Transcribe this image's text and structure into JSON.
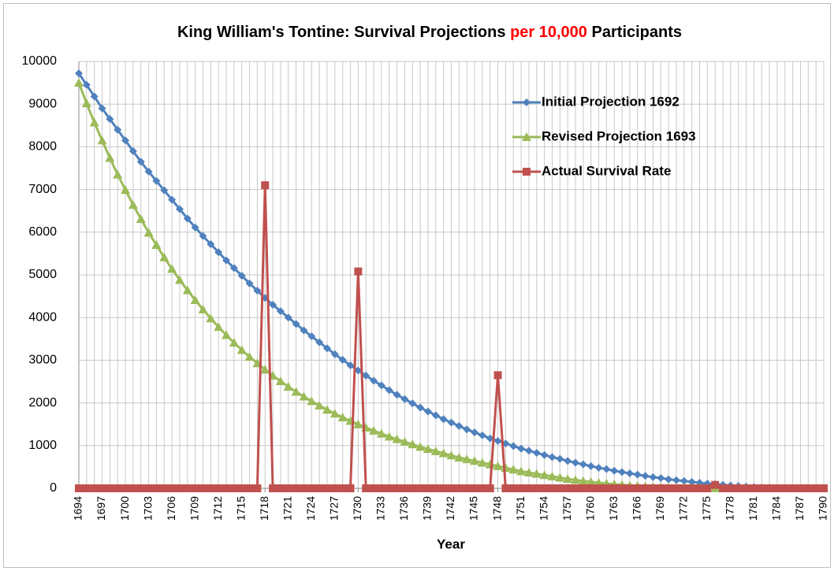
{
  "chart_data": {
    "type": "line",
    "title": [
      {
        "text": "King William's Tontine: Survival Projections",
        "color": "#000000"
      },
      {
        "text": "per 10,000",
        "color": "#ff0000"
      },
      {
        "text": "Participants",
        "color": "#000000"
      }
    ],
    "x_label": "Year",
    "x": [
      1694,
      1695,
      1696,
      1697,
      1698,
      1699,
      1700,
      1701,
      1702,
      1703,
      1704,
      1705,
      1706,
      1707,
      1708,
      1709,
      1710,
      1711,
      1712,
      1713,
      1714,
      1715,
      1716,
      1717,
      1718,
      1719,
      1720,
      1721,
      1722,
      1723,
      1724,
      1725,
      1726,
      1727,
      1728,
      1729,
      1730,
      1731,
      1732,
      1733,
      1734,
      1735,
      1736,
      1737,
      1738,
      1739,
      1740,
      1741,
      1742,
      1743,
      1744,
      1745,
      1746,
      1747,
      1748,
      1749,
      1750,
      1751,
      1752,
      1753,
      1754,
      1755,
      1756,
      1757,
      1758,
      1759,
      1760,
      1761,
      1762,
      1763,
      1764,
      1765,
      1766,
      1767,
      1768,
      1769,
      1770,
      1771,
      1772,
      1773,
      1774,
      1775,
      1776,
      1777,
      1778,
      1779,
      1780,
      1781,
      1782,
      1783,
      1784,
      1785,
      1786,
      1787,
      1788,
      1789,
      1790
    ],
    "xlim": [
      1694,
      1790
    ],
    "xticks": [
      1694,
      1697,
      1700,
      1703,
      1706,
      1709,
      1712,
      1715,
      1718,
      1721,
      1724,
      1727,
      1730,
      1733,
      1736,
      1739,
      1742,
      1745,
      1748,
      1751,
      1754,
      1757,
      1760,
      1763,
      1766,
      1769,
      1772,
      1775,
      1778,
      1781,
      1784,
      1787,
      1790
    ],
    "ylim": [
      0,
      10000
    ],
    "yticks": [
      0,
      1000,
      2000,
      3000,
      4000,
      5000,
      6000,
      7000,
      8000,
      9000,
      10000
    ],
    "grid": true,
    "legend": "upper right",
    "series": [
      {
        "name": "Initial Projection 1692",
        "color": "#4f81bd",
        "marker": "diamond",
        "values": [
          9720,
          9450,
          9180,
          8900,
          8650,
          8400,
          8150,
          7900,
          7650,
          7420,
          7200,
          6980,
          6760,
          6540,
          6320,
          6110,
          5910,
          5720,
          5530,
          5340,
          5160,
          4980,
          4800,
          4630,
          4460,
          4300,
          4150,
          4000,
          3850,
          3700,
          3560,
          3420,
          3280,
          3140,
          3010,
          2880,
          2760,
          2640,
          2520,
          2410,
          2300,
          2190,
          2090,
          1990,
          1890,
          1800,
          1710,
          1620,
          1540,
          1460,
          1380,
          1310,
          1240,
          1170,
          1110,
          1050,
          990,
          930,
          880,
          830,
          780,
          730,
          690,
          640,
          600,
          560,
          520,
          480,
          450,
          410,
          380,
          350,
          320,
          290,
          260,
          240,
          210,
          190,
          170,
          150,
          130,
          110,
          95,
          80,
          65,
          52,
          40,
          30,
          22,
          15,
          10,
          6,
          3,
          2,
          1,
          0,
          0
        ]
      },
      {
        "name": "Revised Projection 1693",
        "color": "#9bbb59",
        "marker": "triangle",
        "values": [
          9500,
          9020,
          8570,
          8150,
          7740,
          7350,
          6990,
          6640,
          6310,
          5990,
          5700,
          5410,
          5140,
          4880,
          4640,
          4410,
          4190,
          3980,
          3780,
          3590,
          3410,
          3240,
          3080,
          2930,
          2780,
          2640,
          2510,
          2380,
          2260,
          2150,
          2040,
          1940,
          1840,
          1750,
          1660,
          1580,
          1500,
          1420,
          1350,
          1280,
          1210,
          1150,
          1090,
          1030,
          970,
          920,
          870,
          820,
          770,
          720,
          680,
          640,
          600,
          560,
          520,
          480,
          440,
          400,
          370,
          340,
          310,
          280,
          250,
          220,
          195,
          170,
          150,
          130,
          110,
          95,
          80,
          65,
          55,
          45,
          35,
          28,
          22,
          17,
          12,
          8,
          5,
          3,
          2,
          1,
          0,
          0,
          0,
          0,
          0,
          0,
          0,
          0,
          0,
          0,
          0,
          0,
          0
        ]
      },
      {
        "name": "Actual Survival Rate",
        "color": "#c0504d",
        "marker": "square",
        "values": [
          0,
          0,
          0,
          0,
          0,
          0,
          0,
          0,
          0,
          0,
          0,
          0,
          0,
          0,
          0,
          0,
          0,
          0,
          0,
          0,
          0,
          0,
          0,
          0,
          7100,
          0,
          0,
          0,
          0,
          0,
          0,
          0,
          0,
          0,
          0,
          0,
          5080,
          0,
          0,
          0,
          0,
          0,
          0,
          0,
          0,
          0,
          0,
          0,
          0,
          0,
          0,
          0,
          0,
          0,
          2650,
          0,
          0,
          0,
          0,
          0,
          0,
          0,
          0,
          0,
          0,
          0,
          0,
          0,
          0,
          0,
          0,
          0,
          0,
          0,
          0,
          0,
          0,
          0,
          0,
          0,
          0,
          0,
          80,
          0,
          0,
          0,
          0,
          0,
          0,
          0,
          0,
          0,
          0,
          0,
          0,
          0,
          0
        ]
      }
    ]
  }
}
